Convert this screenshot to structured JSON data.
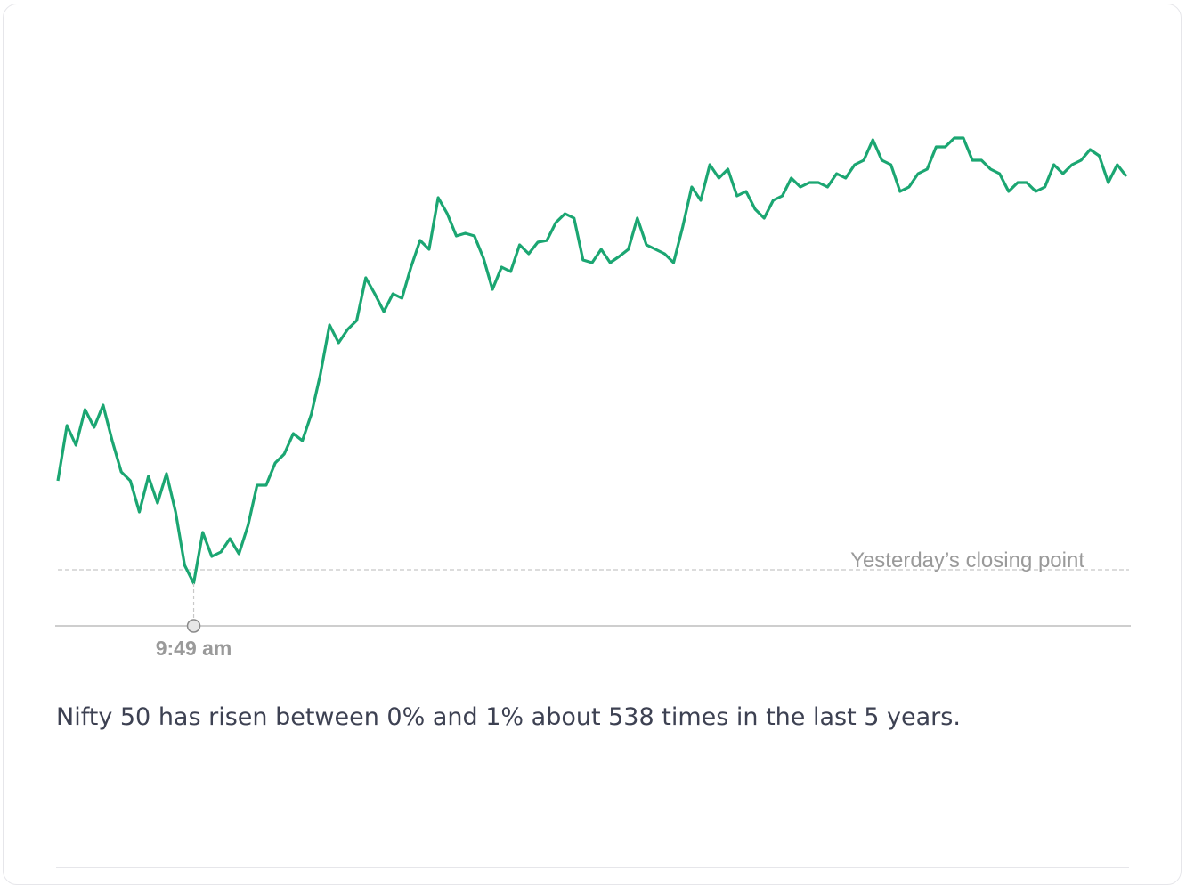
{
  "chart_data": {
    "type": "line",
    "categories": [
      null,
      null,
      null,
      null,
      null,
      null,
      null,
      null,
      null,
      null,
      null,
      null,
      null,
      null,
      null,
      "9:49 am",
      null,
      null,
      null,
      null,
      null,
      null,
      null,
      null,
      null,
      null,
      null,
      null,
      null,
      null,
      null,
      null,
      null,
      null,
      null,
      null,
      null,
      null,
      null,
      null,
      null,
      null,
      null,
      null,
      null,
      null,
      null,
      null,
      null,
      null,
      null,
      null,
      null,
      null,
      null,
      null,
      null,
      null,
      null,
      null,
      null,
      null,
      null,
      null,
      null,
      null,
      null,
      null,
      null,
      null,
      null,
      null,
      null,
      null,
      null,
      null,
      null,
      null,
      null,
      null,
      null,
      null,
      null,
      null,
      null,
      null,
      null,
      null,
      null,
      null,
      null,
      null,
      null,
      null,
      null,
      null,
      null,
      null,
      null,
      null,
      null,
      null,
      null,
      null,
      null,
      null,
      null,
      null,
      null,
      null,
      null,
      null,
      null,
      null,
      null,
      null,
      null,
      null,
      null
    ],
    "values": [
      10,
      16.2,
      14,
      18,
      16,
      18.5,
      14.5,
      11,
      10,
      6.5,
      10.5,
      7.5,
      10.8,
      6.5,
      0.5,
      -1.5,
      4.2,
      1.5,
      2,
      3.5,
      1.8,
      5,
      9.5,
      9.5,
      12,
      13,
      15.3,
      14.5,
      17.5,
      22,
      27.5,
      25.5,
      27,
      28,
      32.8,
      31,
      29,
      31,
      30.5,
      34,
      37,
      36,
      41.8,
      40,
      37.5,
      37.8,
      37.5,
      35,
      31.5,
      34,
      33.5,
      36.5,
      35.5,
      36.8,
      37,
      39,
      40,
      39.5,
      34.8,
      34.5,
      36,
      34.5,
      35.2,
      36,
      39.5,
      36.5,
      36,
      35.5,
      34.5,
      38.5,
      43,
      41.5,
      45.5,
      44,
      45,
      42,
      42.5,
      40.5,
      39.5,
      41.5,
      42,
      44,
      43,
      43.5,
      43.5,
      43,
      44.5,
      44,
      45.5,
      46,
      48.3,
      46,
      45.5,
      42.5,
      43,
      44.5,
      45,
      47.5,
      47.5,
      48.5,
      48.5,
      46,
      46,
      45,
      44.5,
      42.5,
      43.5,
      43.5,
      42.5,
      43,
      45.5,
      44.5,
      45.5,
      46,
      47.2,
      46.5,
      43.5,
      45.5,
      44.2
    ],
    "color": "#1ba672",
    "ylim": [
      -6.3,
      50
    ],
    "reference_line": {
      "value": 0,
      "label": "Yesterday’s closing point"
    }
  },
  "caption": "Nifty 50 has risen between 0% and 1% about 538 times in the last 5 years."
}
